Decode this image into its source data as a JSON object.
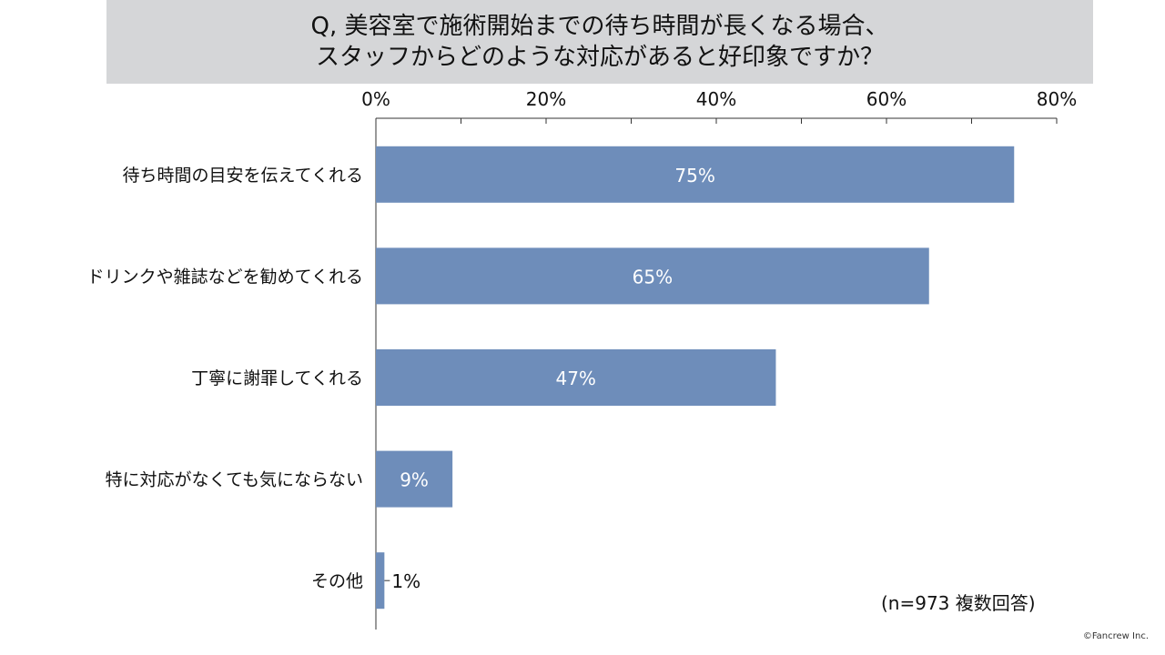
{
  "title": {
    "line1": "Q, 美容室で施術開始までの待ち時間が長くなる場合、",
    "line2": "スタッフからどのような対応があると好印象ですか？"
  },
  "note": "(n=973 複数回答)",
  "copyright": "©Fancrew Inc.",
  "colors": {
    "bar": "#6e8dba",
    "title_bg": "#d5d6d8",
    "axis": "#333333",
    "bar_label": "#ffffff",
    "outside_label": "#111111"
  },
  "chart_data": {
    "type": "bar",
    "orientation": "horizontal",
    "categories": [
      "待ち時間の目安を伝えてくれる",
      "ドリンクや雑誌などを勧めてくれる",
      "丁寧に謝罪してくれる",
      "特に対応がなくても気にならない",
      "その他"
    ],
    "values": [
      75,
      65,
      47,
      9,
      1
    ],
    "value_labels": [
      "75%",
      "65%",
      "47%",
      "9%",
      "1%"
    ],
    "xlim": [
      0,
      80
    ],
    "ticks": [
      0,
      20,
      40,
      60,
      80
    ],
    "tick_labels": [
      "0%",
      "20%",
      "40%",
      "60%",
      "80%"
    ],
    "axis_position": "top",
    "grid": false,
    "legend": "none"
  }
}
